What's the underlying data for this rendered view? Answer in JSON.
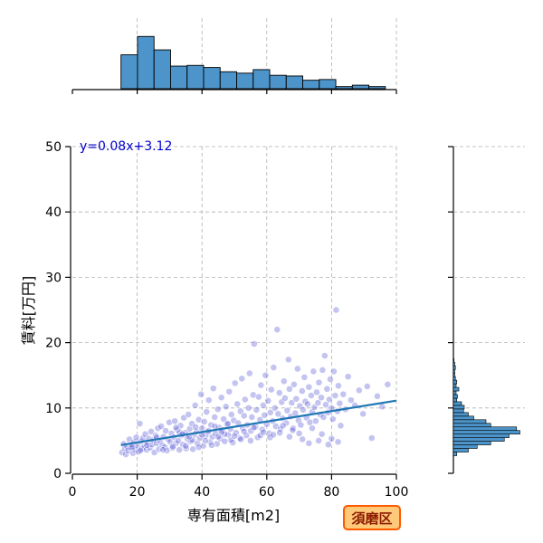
{
  "chart_data": {
    "type": "scatter",
    "xlabel": "専有面積[m2]",
    "ylabel": "賃料[万円]",
    "xlim": [
      0,
      100
    ],
    "ylim": [
      0,
      50
    ],
    "xticks": [
      0,
      20,
      40,
      60,
      80,
      100
    ],
    "yticks": [
      0,
      10,
      20,
      30,
      40,
      50
    ],
    "grid": true,
    "annotation": "y=0.08x+3.12",
    "badge": "須磨区",
    "regression": {
      "slope": 0.08,
      "intercept": 3.12,
      "x_range": [
        15,
        100
      ]
    },
    "scatter_color": "#3a3ad0",
    "line_color": "#1f77b4",
    "hist_color": "#4c94c9",
    "hist_top": {
      "bin_start": 15,
      "bin_width": 5.1,
      "counts": [
        0.48,
        0.74,
        0.55,
        0.32,
        0.33,
        0.3,
        0.24,
        0.22,
        0.27,
        0.19,
        0.18,
        0.12,
        0.13,
        0.03,
        0.05,
        0.03
      ]
    },
    "hist_right": {
      "bin_start": 2.7,
      "bin_width": 0.55,
      "counts": [
        0.05,
        0.22,
        0.35,
        0.55,
        0.75,
        0.82,
        0.98,
        0.93,
        0.55,
        0.48,
        0.3,
        0.22,
        0.15,
        0.16,
        0.12,
        0.05,
        0.06,
        0.04,
        0.08,
        0.04,
        0.05,
        0.03,
        0.02,
        0.02,
        0.03,
        0.02,
        0.01
      ]
    },
    "points": [
      [
        15.3,
        3.2
      ],
      [
        15.8,
        4.5
      ],
      [
        16.2,
        3.8
      ],
      [
        16.5,
        2.9
      ],
      [
        16.9,
        4.1
      ],
      [
        17.2,
        3.5
      ],
      [
        17.6,
        5.2
      ],
      [
        18.0,
        3.9
      ],
      [
        18.3,
        4.4
      ],
      [
        18.7,
        3.1
      ],
      [
        19.0,
        4.8
      ],
      [
        19.4,
        3.6
      ],
      [
        19.7,
        5.5
      ],
      [
        20.1,
        4.2
      ],
      [
        20.4,
        3.3
      ],
      [
        20.8,
        7.6
      ],
      [
        21.1,
        4.9
      ],
      [
        21.5,
        3.8
      ],
      [
        21.8,
        5.4
      ],
      [
        22.2,
        4.1
      ],
      [
        22.5,
        6.0
      ],
      [
        22.9,
        3.6
      ],
      [
        23.2,
        4.7
      ],
      [
        23.6,
        5.3
      ],
      [
        23.9,
        3.9
      ],
      [
        24.3,
        6.4
      ],
      [
        24.6,
        4.4
      ],
      [
        25.0,
        5.1
      ],
      [
        25.3,
        3.2
      ],
      [
        25.7,
        5.8
      ],
      [
        26.0,
        4.6
      ],
      [
        26.4,
        6.9
      ],
      [
        26.7,
        3.7
      ],
      [
        27.1,
        5.0
      ],
      [
        27.4,
        7.2
      ],
      [
        27.8,
        4.3
      ],
      [
        28.1,
        5.6
      ],
      [
        28.5,
        4.0
      ],
      [
        28.8,
        6.5
      ],
      [
        29.2,
        3.5
      ],
      [
        29.5,
        5.2
      ],
      [
        29.9,
        7.8
      ],
      [
        30.2,
        4.8
      ],
      [
        30.6,
        6.1
      ],
      [
        30.9,
        3.9
      ],
      [
        31.3,
        5.5
      ],
      [
        31.6,
        8.0
      ],
      [
        32.0,
        4.6
      ],
      [
        32.3,
        6.7
      ],
      [
        32.7,
        5.0
      ],
      [
        33.0,
        3.6
      ],
      [
        33.4,
        7.3
      ],
      [
        33.7,
        5.8
      ],
      [
        34.1,
        4.4
      ],
      [
        34.4,
        8.5
      ],
      [
        34.8,
        6.2
      ],
      [
        35.1,
        3.8
      ],
      [
        35.5,
        5.3
      ],
      [
        35.8,
        9.0
      ],
      [
        36.2,
        6.8
      ],
      [
        36.5,
        4.9
      ],
      [
        36.9,
        7.6
      ],
      [
        37.2,
        3.7
      ],
      [
        37.6,
        5.9
      ],
      [
        37.9,
        10.4
      ],
      [
        38.3,
        6.4
      ],
      [
        38.6,
        4.6
      ],
      [
        39.0,
        8.2
      ],
      [
        39.3,
        5.4
      ],
      [
        39.7,
        12.1
      ],
      [
        40.0,
        6.9
      ],
      [
        40.4,
        4.2
      ],
      [
        40.7,
        7.9
      ],
      [
        41.1,
        5.7
      ],
      [
        41.4,
        9.4
      ],
      [
        41.8,
        6.3
      ],
      [
        42.1,
        11.2
      ],
      [
        42.5,
        4.8
      ],
      [
        42.8,
        7.4
      ],
      [
        43.2,
        5.6
      ],
      [
        43.5,
        13.0
      ],
      [
        43.9,
        8.6
      ],
      [
        44.2,
        6.1
      ],
      [
        44.6,
        4.5
      ],
      [
        44.9,
        9.8
      ],
      [
        45.3,
        7.0
      ],
      [
        45.6,
        5.3
      ],
      [
        46.0,
        11.6
      ],
      [
        46.3,
        6.6
      ],
      [
        46.7,
        8.3
      ],
      [
        47.0,
        4.9
      ],
      [
        47.4,
        10.2
      ],
      [
        47.7,
        7.5
      ],
      [
        48.1,
        5.9
      ],
      [
        48.4,
        12.5
      ],
      [
        48.8,
        6.8
      ],
      [
        49.1,
        9.0
      ],
      [
        49.5,
        4.7
      ],
      [
        49.8,
        8.1
      ],
      [
        50.2,
        13.8
      ],
      [
        50.5,
        6.2
      ],
      [
        50.9,
        10.6
      ],
      [
        51.2,
        7.7
      ],
      [
        51.6,
        5.4
      ],
      [
        51.9,
        9.5
      ],
      [
        52.3,
        14.5
      ],
      [
        52.6,
        6.9
      ],
      [
        53.0,
        8.8
      ],
      [
        53.3,
        11.3
      ],
      [
        53.7,
        5.8
      ],
      [
        54.0,
        7.4
      ],
      [
        54.4,
        10.0
      ],
      [
        54.7,
        15.3
      ],
      [
        55.1,
        6.5
      ],
      [
        55.4,
        8.6
      ],
      [
        55.8,
        12.0
      ],
      [
        56.1,
        19.8
      ],
      [
        56.5,
        7.1
      ],
      [
        56.8,
        9.7
      ],
      [
        57.2,
        5.5
      ],
      [
        57.5,
        11.7
      ],
      [
        57.9,
        8.2
      ],
      [
        58.2,
        13.5
      ],
      [
        58.6,
        6.7
      ],
      [
        58.9,
        10.4
      ],
      [
        59.3,
        8.9
      ],
      [
        59.6,
        15.0
      ],
      [
        60.0,
        7.5
      ],
      [
        60.4,
        11.1
      ],
      [
        60.7,
        6.1
      ],
      [
        61.1,
        9.3
      ],
      [
        61.4,
        12.8
      ],
      [
        61.8,
        8.0
      ],
      [
        62.1,
        16.2
      ],
      [
        62.5,
        10.0
      ],
      [
        62.8,
        7.2
      ],
      [
        63.2,
        22.0
      ],
      [
        63.5,
        9.1
      ],
      [
        63.9,
        12.3
      ],
      [
        64.2,
        6.8
      ],
      [
        64.6,
        10.9
      ],
      [
        64.9,
        8.4
      ],
      [
        65.3,
        14.1
      ],
      [
        65.6,
        11.5
      ],
      [
        66.0,
        7.7
      ],
      [
        66.3,
        9.6
      ],
      [
        66.7,
        17.4
      ],
      [
        67.0,
        12.9
      ],
      [
        67.4,
        8.7
      ],
      [
        67.7,
        10.8
      ],
      [
        68.1,
        6.9
      ],
      [
        68.4,
        13.6
      ],
      [
        68.8,
        9.2
      ],
      [
        69.1,
        11.4
      ],
      [
        69.5,
        16.0
      ],
      [
        69.8,
        8.1
      ],
      [
        70.2,
        10.3
      ],
      [
        70.5,
        7.4
      ],
      [
        70.9,
        12.6
      ],
      [
        71.2,
        9.7
      ],
      [
        71.6,
        14.7
      ],
      [
        71.9,
        11.0
      ],
      [
        72.3,
        8.5
      ],
      [
        72.6,
        10.6
      ],
      [
        73.0,
        13.2
      ],
      [
        73.3,
        7.8
      ],
      [
        73.7,
        11.9
      ],
      [
        74.0,
        9.4
      ],
      [
        74.4,
        15.6
      ],
      [
        74.7,
        10.1
      ],
      [
        75.1,
        8.0
      ],
      [
        75.4,
        12.4
      ],
      [
        75.8,
        10.8
      ],
      [
        76.1,
        13.9
      ],
      [
        76.5,
        9.0
      ],
      [
        76.8,
        11.6
      ],
      [
        77.2,
        15.8
      ],
      [
        77.5,
        8.6
      ],
      [
        77.9,
        18.0
      ],
      [
        78.2,
        10.5
      ],
      [
        78.6,
        12.9
      ],
      [
        78.9,
        9.3
      ],
      [
        79.3,
        11.3
      ],
      [
        79.6,
        14.4
      ],
      [
        80.0,
        10.0
      ],
      [
        80.4,
        8.3
      ],
      [
        80.7,
        15.6
      ],
      [
        81.1,
        11.9
      ],
      [
        81.4,
        25.0
      ],
      [
        81.8,
        9.5
      ],
      [
        82.1,
        13.4
      ],
      [
        82.5,
        10.7
      ],
      [
        82.8,
        7.3
      ],
      [
        83.6,
        12.1
      ],
      [
        84.3,
        9.8
      ],
      [
        85.1,
        14.8
      ],
      [
        86.0,
        11.2
      ],
      [
        87.2,
        10.4
      ],
      [
        88.5,
        12.7
      ],
      [
        89.7,
        9.1
      ],
      [
        91.0,
        13.3
      ],
      [
        92.4,
        5.4
      ],
      [
        94.1,
        11.8
      ],
      [
        95.6,
        10.2
      ],
      [
        97.3,
        13.6
      ],
      [
        18.5,
        4.0
      ],
      [
        21.0,
        3.5
      ],
      [
        23.0,
        4.3
      ],
      [
        26.0,
        5.5
      ],
      [
        28.0,
        3.6
      ],
      [
        31.0,
        4.1
      ],
      [
        33.0,
        6.3
      ],
      [
        35.0,
        4.2
      ],
      [
        37.0,
        5.1
      ],
      [
        39.0,
        4.0
      ],
      [
        41.0,
        5.0
      ],
      [
        43.0,
        4.3
      ],
      [
        45.0,
        5.6
      ],
      [
        47.0,
        6.0
      ],
      [
        49.0,
        5.1
      ],
      [
        52.0,
        5.2
      ],
      [
        55.0,
        5.0
      ],
      [
        58.0,
        5.8
      ],
      [
        61.0,
        5.5
      ],
      [
        64.0,
        6.2
      ],
      [
        67.0,
        5.6
      ],
      [
        70.0,
        6.1
      ],
      [
        73.0,
        4.6
      ],
      [
        76.0,
        5.0
      ],
      [
        79.0,
        4.4
      ],
      [
        82.0,
        4.8
      ],
      [
        32.0,
        7.0
      ],
      [
        34.0,
        6.0
      ],
      [
        36.0,
        5.6
      ],
      [
        38.0,
        7.1
      ],
      [
        40.0,
        5.9
      ],
      [
        42.0,
        6.5
      ],
      [
        44.0,
        7.2
      ],
      [
        46.0,
        6.3
      ],
      [
        48.0,
        7.6
      ],
      [
        50.0,
        5.7
      ],
      [
        53.0,
        6.4
      ],
      [
        56.0,
        7.0
      ],
      [
        59.0,
        6.3
      ],
      [
        62.0,
        5.9
      ],
      [
        65.0,
        7.3
      ],
      [
        68.0,
        6.6
      ],
      [
        71.0,
        5.2
      ],
      [
        74.0,
        6.9
      ],
      [
        77.0,
        6.0
      ],
      [
        80.0,
        5.3
      ]
    ]
  }
}
